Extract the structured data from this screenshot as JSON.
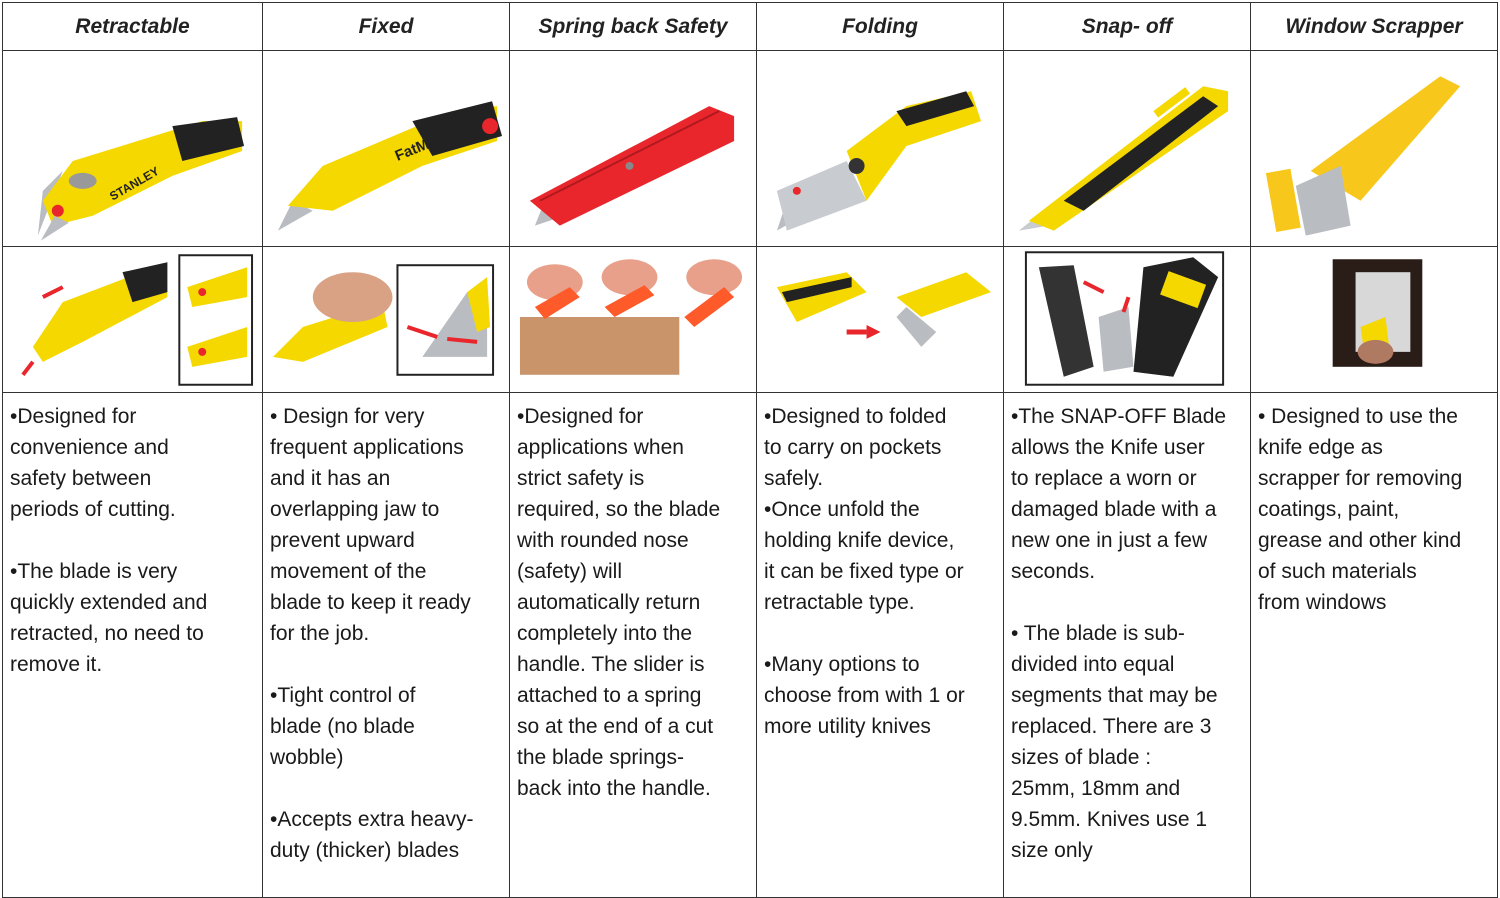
{
  "columns": [
    {
      "header": "Retractable",
      "paragraphs": [
        "•Designed for\nconvenience and\nsafety between\nperiods of cutting.",
        "•The blade is very\nquickly extended and\nretracted, no need to\nremove it."
      ]
    },
    {
      "header": "Fixed",
      "paragraphs": [
        "• Design for very\nfrequent applications\nand it has an\noverlapping jaw to\nprevent upward\nmovement of the\nblade to keep it ready\nfor the job.",
        "•Tight control of\nblade (no blade\nwobble)",
        "•Accepts extra heavy-\nduty  (thicker) blades"
      ]
    },
    {
      "header": "Spring back Safety",
      "paragraphs": [
        "•Designed for\napplications when\nstrict safety is\nrequired, so the blade\nwith rounded nose\n(safety) will\nautomatically return\ncompletely into the\nhandle. The slider is\nattached to a spring\nso at the end of a cut\nthe blade springs-\nback into the handle."
      ]
    },
    {
      "header": "Folding",
      "paragraphs": [
        "•Designed to folded\nto carry on pockets\nsafely.\n•Once unfold the\nholding knife device,\nit can be fixed type or\nretractable type.",
        "•Many options to\nchoose from with 1 or\nmore utility knives"
      ]
    },
    {
      "header": "Snap- off",
      "paragraphs": [
        "•The SNAP-OFF Blade\nallows the Knife user\nto replace a worn or\ndamaged blade with a\nnew one in just a few\nseconds.",
        "• The blade is sub-\ndivided into equal\nsegments that may be\nreplaced. There are 3\nsizes of blade :\n25mm, 18mm and\n9.5mm. Knives use 1\nsize only"
      ]
    },
    {
      "header": "Window Scrapper",
      "paragraphs": [
        "• Designed to use the\nknife edge as\nscrapper for removing\ncoatings, paint,\ngrease and other kind\nof such materials\nfrom windows"
      ]
    }
  ],
  "logos": {
    "stanley": "STANLEY",
    "fatmax": "FatMax"
  },
  "colors": {
    "yellow": "#f5d800",
    "black": "#222222",
    "red": "#e8262b",
    "blade": "#b9bcc0",
    "box": "#c9946a"
  }
}
